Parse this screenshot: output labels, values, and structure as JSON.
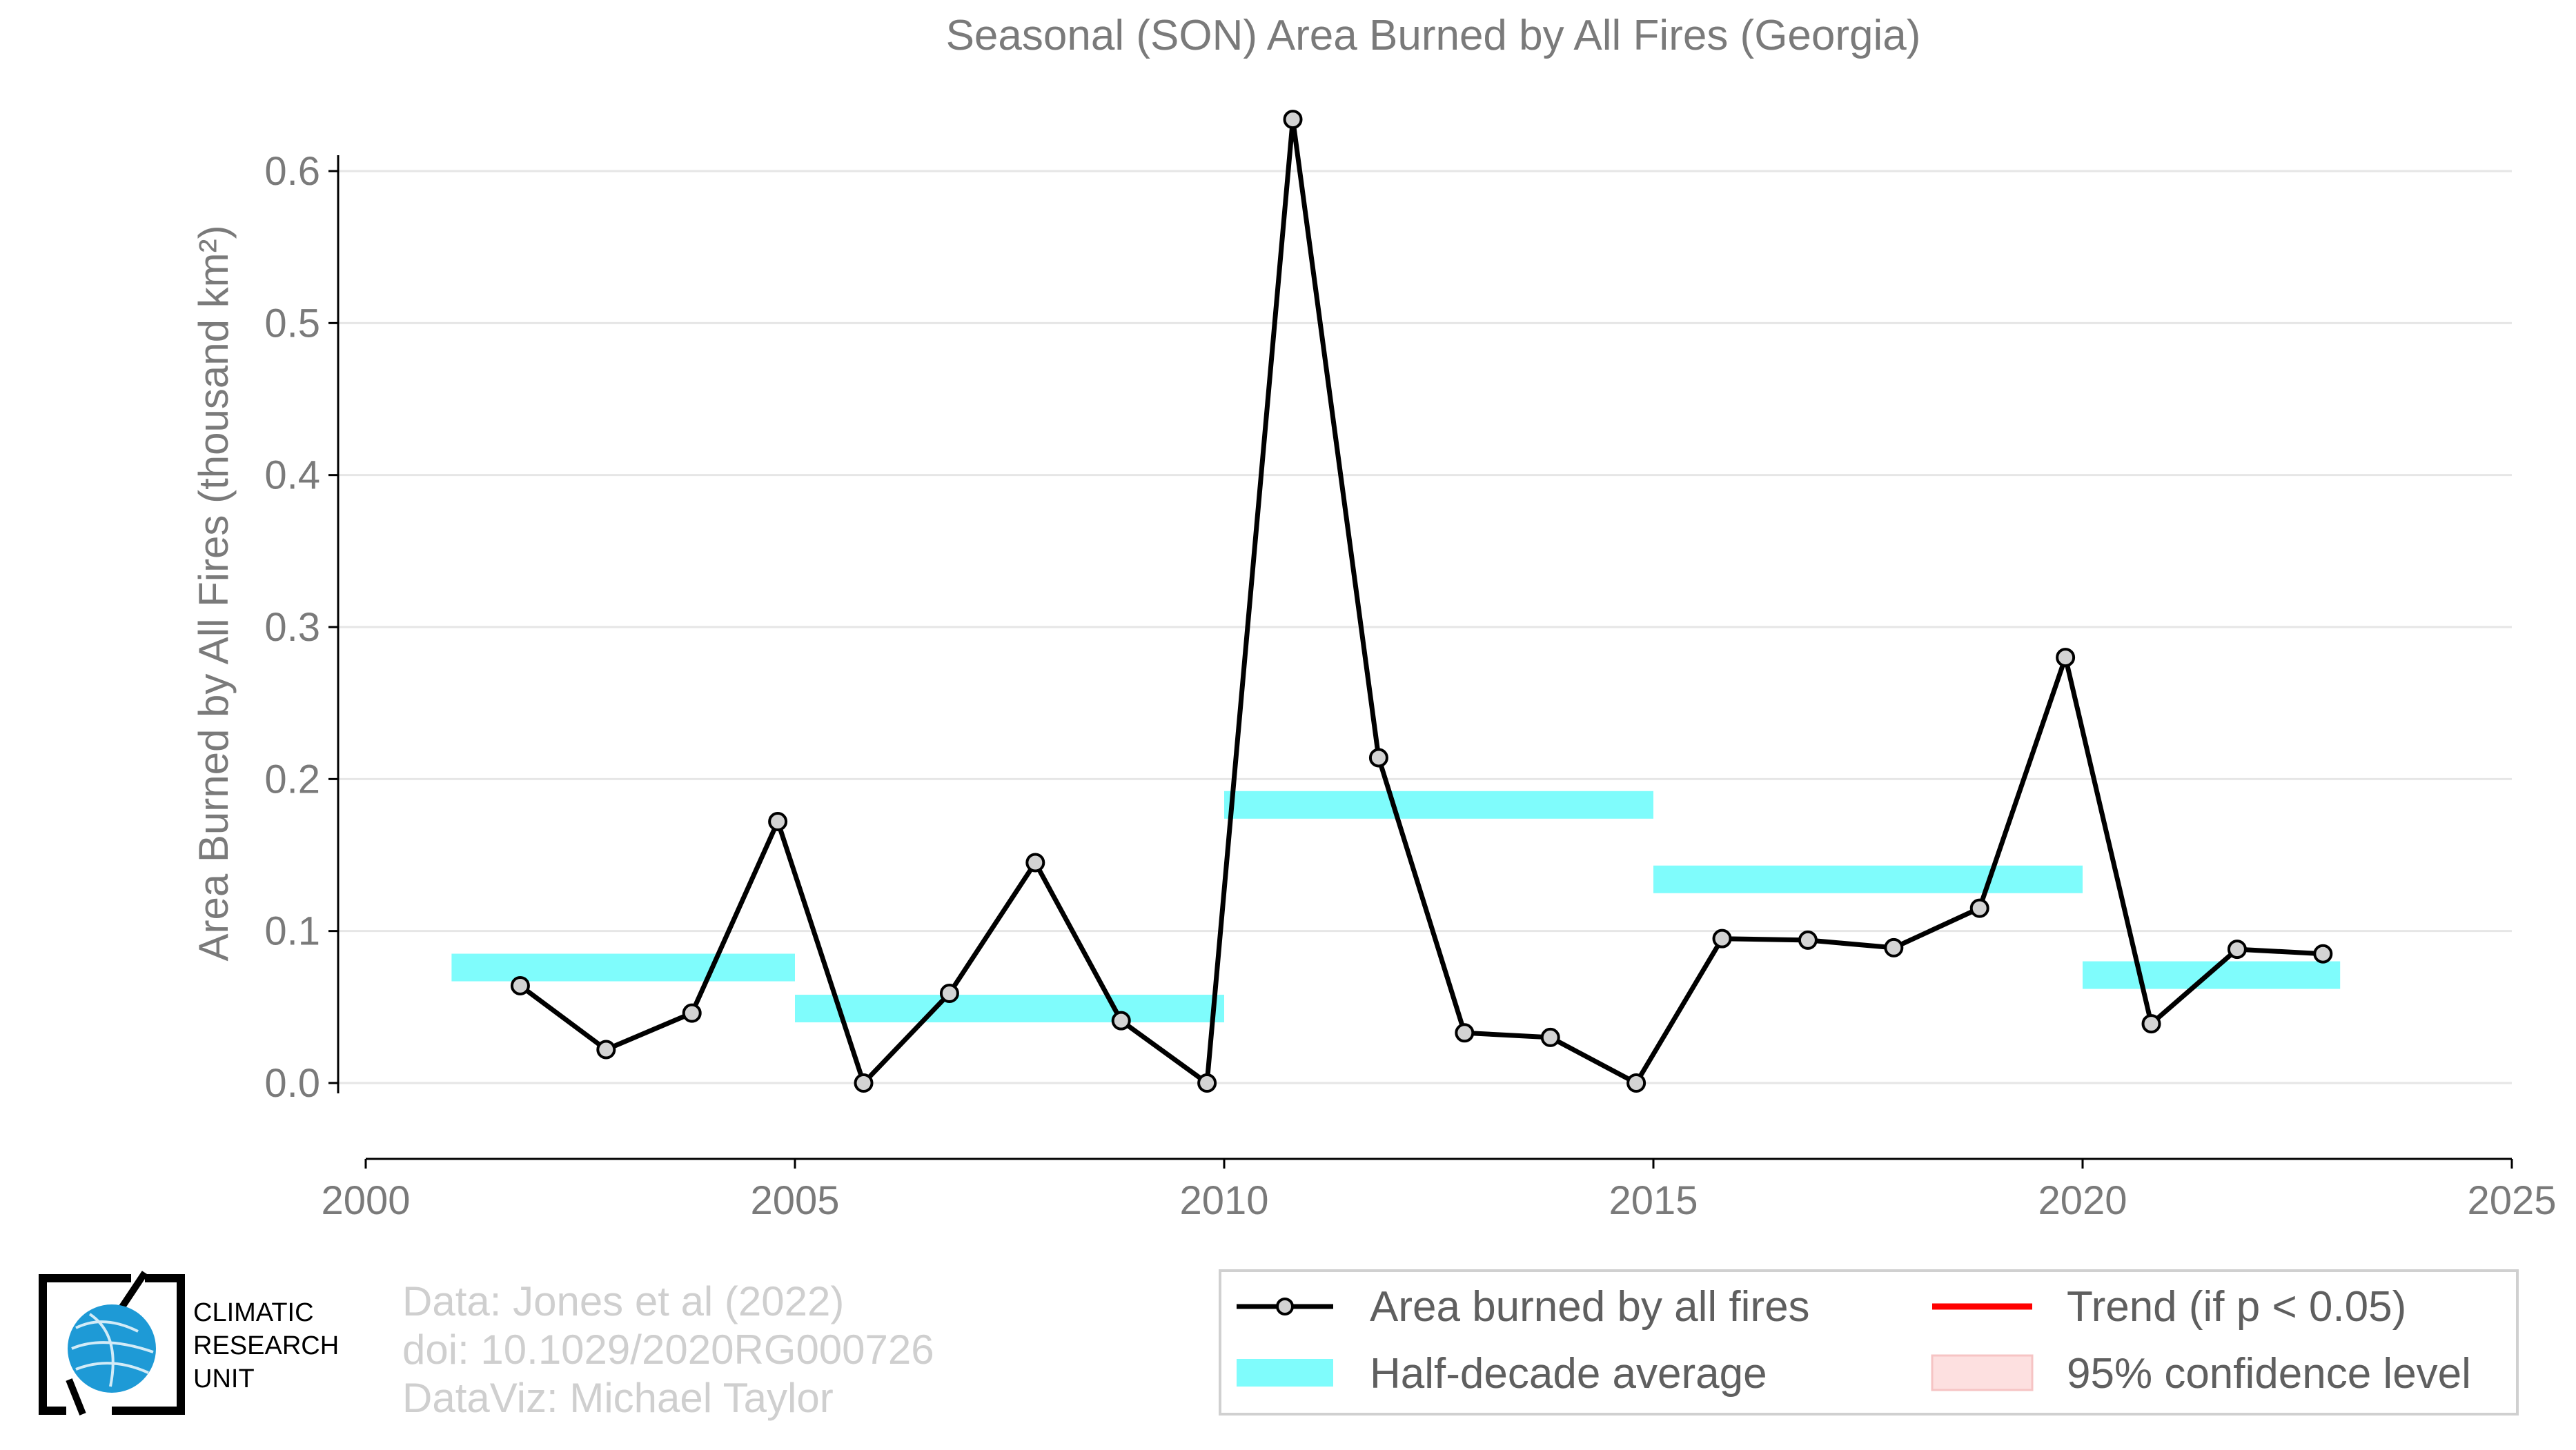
{
  "chart_data": {
    "type": "line",
    "title": "Seasonal (SON) Area Burned by All Fires (Georgia)",
    "ylabel": "Area Burned by All Fires (thousand km²)",
    "xlabel": "",
    "xlim": [
      2000,
      2025
    ],
    "ylim": [
      -0.05,
      0.63
    ],
    "xticks": [
      2000,
      2005,
      2010,
      2015,
      2020,
      2025
    ],
    "yticks": [
      0.0,
      0.1,
      0.2,
      0.3,
      0.4,
      0.5,
      0.6
    ],
    "ytick_labels": [
      "0.0",
      "0.1",
      "0.2",
      "0.3",
      "0.4",
      "0.5",
      "0.6"
    ],
    "grid": true,
    "series": [
      {
        "name": "Area burned by all fires",
        "color": "#000000",
        "x": [
          2001.8,
          2002.8,
          2003.8,
          2004.8,
          2005.8,
          2006.8,
          2007.8,
          2008.8,
          2009.8,
          2010.8,
          2011.8,
          2012.8,
          2013.8,
          2014.8,
          2015.8,
          2016.8,
          2017.8,
          2018.8,
          2019.8,
          2020.8,
          2021.8,
          2022.8
        ],
        "y": [
          0.064,
          0.022,
          0.046,
          0.172,
          0.0,
          0.059,
          0.145,
          0.041,
          0.0,
          0.634,
          0.214,
          0.033,
          0.03,
          0.0,
          0.095,
          0.094,
          0.089,
          0.115,
          0.28,
          0.039,
          0.088,
          0.085
        ]
      }
    ],
    "half_decade_average": {
      "name": "Half-decade average",
      "color": "#7ffcfc",
      "segments": [
        {
          "x0": 2001,
          "x1": 2005,
          "y": 0.076
        },
        {
          "x0": 2005,
          "x1": 2010,
          "y": 0.049
        },
        {
          "x0": 2010,
          "x1": 2015,
          "y": 0.183
        },
        {
          "x0": 2015,
          "x1": 2020,
          "y": 0.134
        },
        {
          "x0": 2020,
          "x1": 2023,
          "y": 0.071
        }
      ]
    },
    "legend": {
      "placement": "bottom-right",
      "items": [
        {
          "label": "Area burned by all fires",
          "symbol": "line-marker",
          "color": "#000000"
        },
        {
          "label": "Trend (if p < 0.05)",
          "symbol": "line",
          "color": "#ff0000"
        },
        {
          "label": "Half-decade average",
          "symbol": "bar",
          "color": "#7ffcfc"
        },
        {
          "label": "95% confidence level",
          "symbol": "box",
          "color": "#fde0e0"
        }
      ]
    }
  },
  "credits": {
    "line1": "Data: Jones et al (2022)",
    "line2": "doi: 10.1029/2020RG000726",
    "line3": "DataViz: Michael Taylor"
  },
  "logo": {
    "line1": "CLIMATIC",
    "line2": "RESEARCH",
    "line3": "UNIT",
    "colors": {
      "globe": "#1e9ad6",
      "frame": "#000000"
    }
  }
}
